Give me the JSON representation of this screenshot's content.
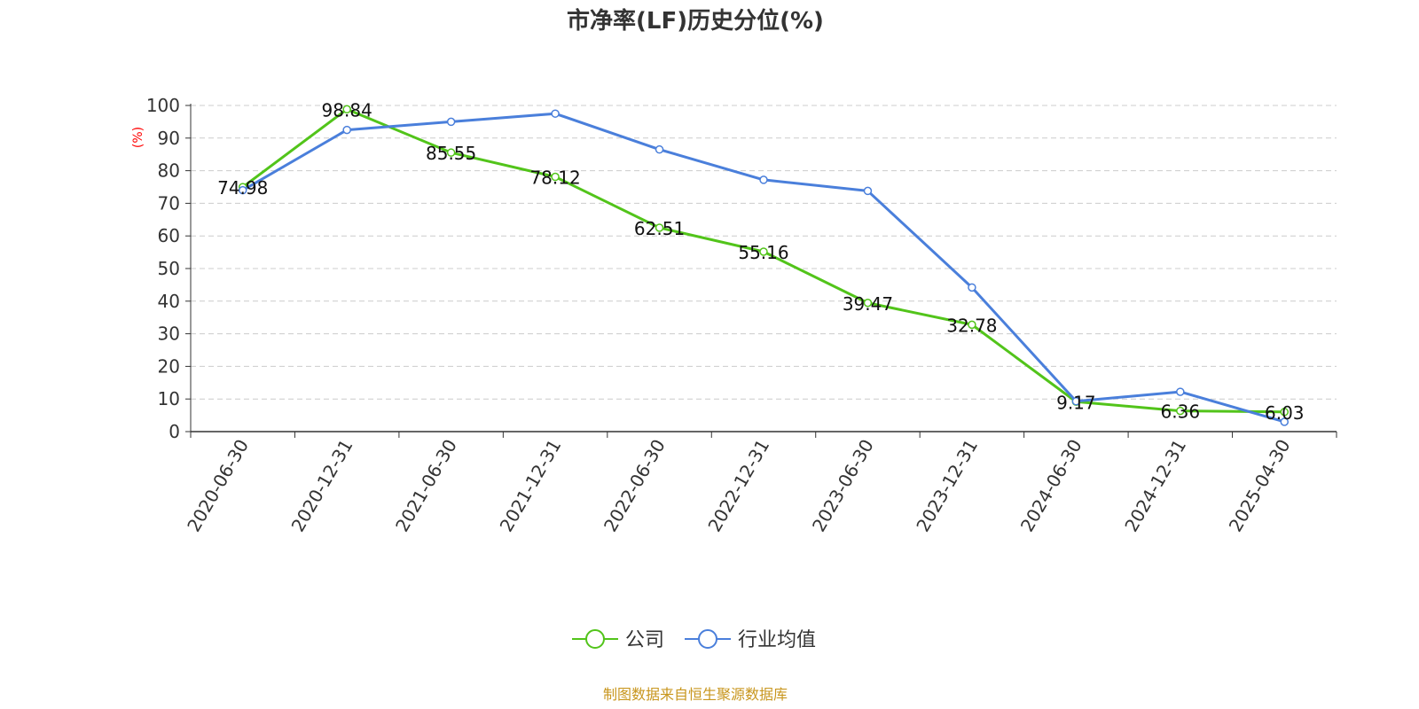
{
  "title": "市净率(LF)历史分位(%)",
  "unit_label": "(%)",
  "source": "制图数据来自恒生聚源数据库",
  "colors": {
    "company": "#52c41a",
    "industry": "#4a7fdb",
    "unit": "#ff0000",
    "source": "#c8961e",
    "grid": "#cccccc",
    "axis": "#333333"
  },
  "chart_data": {
    "type": "line",
    "title": "市净率(LF)历史分位(%)",
    "ylabel": "(%)",
    "xlabel": "",
    "ylim": [
      0,
      100
    ],
    "yticks": [
      0,
      10,
      20,
      30,
      40,
      50,
      60,
      70,
      80,
      90,
      100
    ],
    "grid": true,
    "legend_position": "bottom",
    "categories": [
      "2020-06-30",
      "2020-12-31",
      "2021-06-30",
      "2021-12-31",
      "2022-06-30",
      "2022-12-31",
      "2023-06-30",
      "2023-12-31",
      "2024-06-30",
      "2024-12-31",
      "2025-04-30"
    ],
    "series": [
      {
        "name": "公司",
        "values": [
          74.98,
          98.84,
          85.55,
          78.12,
          62.51,
          55.16,
          39.47,
          32.78,
          9.17,
          6.36,
          6.03
        ],
        "labels": [
          "74.98",
          "98.84",
          "85.55",
          "78.12",
          "62.51",
          "55.16",
          "39.47",
          "32.78",
          "9.17",
          "6.36",
          "6.03"
        ]
      },
      {
        "name": "行业均值",
        "values": [
          74.0,
          92.5,
          95.0,
          97.5,
          86.5,
          77.2,
          73.8,
          44.2,
          9.3,
          12.2,
          3.0
        ]
      }
    ]
  }
}
